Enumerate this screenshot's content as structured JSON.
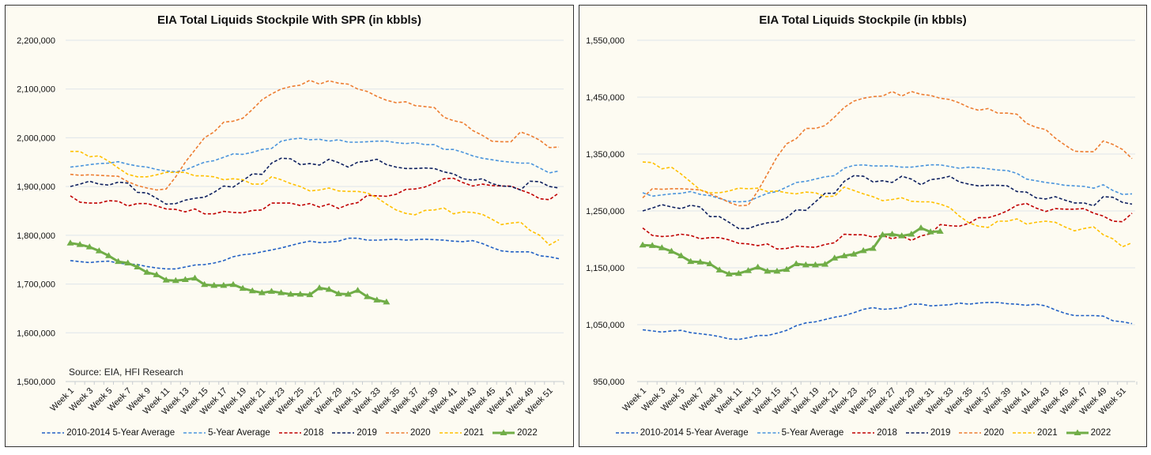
{
  "chart_data": [
    {
      "type": "line",
      "title": "EIA Total Liquids Stockpile With SPR (in kbbls)",
      "xlabel": "",
      "ylabel": "",
      "ylim": [
        1500000,
        2200000
      ],
      "yticks": [
        1500000,
        1600000,
        1700000,
        1800000,
        1900000,
        2000000,
        2100000,
        2200000
      ],
      "ytick_labels": [
        "1,500,000",
        "1,600,000",
        "1,700,000",
        "1,800,000",
        "1,900,000",
        "2,000,000",
        "2,100,000",
        "2,200,000"
      ],
      "grid": true,
      "legend_position": "bottom",
      "annotation": "Source: EIA, HFI Research",
      "value_unit_note": "values listed in thousands of kbbls",
      "series": [
        {
          "name": "2010-2014 5-Year Average",
          "color": "#2160c4",
          "style": "dashed",
          "values": [
            1748,
            1746,
            1744,
            1746,
            1747,
            1743,
            1741,
            1740,
            1736,
            1733,
            1731,
            1731,
            1735,
            1739,
            1740,
            1743,
            1748,
            1756,
            1760,
            1762,
            1766,
            1770,
            1774,
            1779,
            1784,
            1788,
            1785,
            1786,
            1788,
            1794,
            1794,
            1790,
            1790,
            1791,
            1792,
            1790,
            1791,
            1792,
            1791,
            1790,
            1788,
            1787,
            1789,
            1783,
            1775,
            1768,
            1766,
            1766,
            1766,
            1758,
            1756,
            1752
          ]
        },
        {
          "name": "5-Year Average",
          "color": "#4a94dc",
          "style": "dashed",
          "values": [
            1940,
            1942,
            1945,
            1947,
            1948,
            1951,
            1946,
            1942,
            1940,
            1935,
            1932,
            1930,
            1934,
            1942,
            1950,
            1953,
            1960,
            1967,
            1966,
            1970,
            1976,
            1978,
            1993,
            1997,
            1999,
            1996,
            1997,
            1993,
            1996,
            1991,
            1991,
            1992,
            1993,
            1993,
            1990,
            1988,
            1990,
            1986,
            1986,
            1976,
            1976,
            1970,
            1963,
            1958,
            1955,
            1952,
            1950,
            1948,
            1948,
            1938,
            1928,
            1932
          ]
        },
        {
          "name": "2018",
          "color": "#c00000",
          "style": "dashed",
          "values": [
            1881,
            1868,
            1866,
            1866,
            1871,
            1870,
            1860,
            1865,
            1865,
            1860,
            1854,
            1853,
            1848,
            1854,
            1844,
            1844,
            1849,
            1847,
            1846,
            1851,
            1852,
            1866,
            1866,
            1866,
            1861,
            1865,
            1858,
            1864,
            1855,
            1863,
            1867,
            1882,
            1881,
            1880,
            1884,
            1894,
            1895,
            1899,
            1907,
            1916,
            1917,
            1908,
            1901,
            1905,
            1902,
            1901,
            1901,
            1893,
            1886,
            1875,
            1873,
            1887
          ]
        },
        {
          "name": "2019",
          "color": "#0d1f5e",
          "style": "dashed",
          "values": [
            1900,
            1905,
            1911,
            1905,
            1903,
            1909,
            1907,
            1888,
            1887,
            1876,
            1864,
            1865,
            1872,
            1876,
            1878,
            1888,
            1901,
            1899,
            1912,
            1926,
            1925,
            1948,
            1958,
            1957,
            1945,
            1947,
            1944,
            1956,
            1949,
            1940,
            1950,
            1952,
            1956,
            1945,
            1940,
            1937,
            1937,
            1938,
            1937,
            1930,
            1926,
            1916,
            1913,
            1916,
            1906,
            1901,
            1900,
            1893,
            1911,
            1910,
            1900,
            1897
          ]
        },
        {
          "name": "2020",
          "color": "#ed7d31",
          "style": "dashed",
          "values": [
            1925,
            1923,
            1924,
            1923,
            1922,
            1921,
            1910,
            1902,
            1897,
            1893,
            1895,
            1920,
            1950,
            1975,
            2000,
            2012,
            2032,
            2034,
            2040,
            2058,
            2078,
            2090,
            2100,
            2105,
            2108,
            2118,
            2110,
            2117,
            2112,
            2110,
            2100,
            2095,
            2085,
            2077,
            2072,
            2074,
            2066,
            2064,
            2062,
            2042,
            2035,
            2031,
            2015,
            2005,
            1993,
            1992,
            1992,
            2012,
            2005,
            1995,
            1980,
            1981
          ]
        },
        {
          "name": "2021",
          "color": "#ffc000",
          "style": "dashed",
          "values": [
            1972,
            1972,
            1961,
            1963,
            1952,
            1938,
            1925,
            1920,
            1920,
            1924,
            1929,
            1929,
            1929,
            1922,
            1922,
            1920,
            1914,
            1916,
            1914,
            1905,
            1905,
            1920,
            1914,
            1906,
            1900,
            1891,
            1893,
            1897,
            1891,
            1890,
            1890,
            1887,
            1877,
            1864,
            1852,
            1845,
            1842,
            1851,
            1852,
            1856,
            1844,
            1848,
            1847,
            1843,
            1833,
            1822,
            1825,
            1827,
            1810,
            1800,
            1780,
            1791
          ]
        },
        {
          "name": "2022",
          "color": "#70ad47",
          "style": "solid-triangle",
          "values": [
            1784,
            1781,
            1776,
            1768,
            1758,
            1746,
            1743,
            1735,
            1724,
            1719,
            1708,
            1707,
            1709,
            1712,
            1699,
            1697,
            1697,
            1699,
            1691,
            1686,
            1682,
            1685,
            1682,
            1679,
            1679,
            1678,
            1692,
            1689,
            1680,
            1679,
            1687,
            1674,
            1667,
            1663
          ]
        }
      ]
    },
    {
      "type": "line",
      "title": "EIA Total Liquids Stockpile (in kbbls)",
      "xlabel": "",
      "ylabel": "",
      "ylim": [
        950000,
        1550000
      ],
      "yticks": [
        950000,
        1050000,
        1150000,
        1250000,
        1350000,
        1450000,
        1550000
      ],
      "ytick_labels": [
        "950,000",
        "1,050,000",
        "1,150,000",
        "1,250,000",
        "1,350,000",
        "1,450,000",
        "1,550,000"
      ],
      "grid": true,
      "legend_position": "bottom",
      "value_unit_note": "values listed in thousands of kbbls",
      "series": [
        {
          "name": "2010-2014 5-Year Average",
          "color": "#2160c4",
          "style": "dashed",
          "values": [
            1041,
            1039,
            1037,
            1039,
            1040,
            1036,
            1034,
            1032,
            1029,
            1025,
            1024,
            1027,
            1031,
            1031,
            1035,
            1040,
            1048,
            1053,
            1055,
            1059,
            1063,
            1066,
            1071,
            1077,
            1080,
            1077,
            1078,
            1080,
            1086,
            1086,
            1083,
            1084,
            1085,
            1088,
            1086,
            1088,
            1089,
            1089,
            1087,
            1086,
            1084,
            1086,
            1083,
            1076,
            1070,
            1066,
            1066,
            1066,
            1065,
            1057,
            1055,
            1052
          ]
        },
        {
          "name": "5-Year Average",
          "color": "#4a94dc",
          "style": "dashed",
          "values": [
            1282,
            1276,
            1278,
            1280,
            1281,
            1284,
            1279,
            1277,
            1272,
            1267,
            1266,
            1267,
            1274,
            1281,
            1284,
            1292,
            1300,
            1302,
            1306,
            1310,
            1312,
            1325,
            1330,
            1331,
            1329,
            1329,
            1329,
            1327,
            1327,
            1329,
            1331,
            1331,
            1328,
            1325,
            1327,
            1326,
            1324,
            1322,
            1321,
            1316,
            1306,
            1303,
            1300,
            1298,
            1295,
            1294,
            1293,
            1290,
            1296,
            1286,
            1279,
            1280
          ]
        },
        {
          "name": "2018",
          "color": "#c00000",
          "style": "dashed",
          "values": [
            1220,
            1207,
            1205,
            1206,
            1209,
            1207,
            1201,
            1203,
            1203,
            1199,
            1193,
            1192,
            1189,
            1192,
            1183,
            1184,
            1188,
            1187,
            1186,
            1191,
            1194,
            1209,
            1208,
            1208,
            1204,
            1207,
            1201,
            1206,
            1198,
            1206,
            1210,
            1226,
            1224,
            1223,
            1228,
            1238,
            1238,
            1243,
            1250,
            1260,
            1263,
            1255,
            1249,
            1254,
            1253,
            1253,
            1254,
            1246,
            1241,
            1232,
            1231,
            1246
          ]
        },
        {
          "name": "2019",
          "color": "#0d1f5e",
          "style": "dashed",
          "values": [
            1250,
            1255,
            1261,
            1257,
            1254,
            1260,
            1257,
            1240,
            1240,
            1230,
            1219,
            1219,
            1225,
            1229,
            1231,
            1238,
            1252,
            1251,
            1266,
            1281,
            1281,
            1302,
            1312,
            1311,
            1301,
            1303,
            1300,
            1311,
            1306,
            1296,
            1305,
            1307,
            1311,
            1301,
            1297,
            1294,
            1295,
            1295,
            1294,
            1284,
            1283,
            1273,
            1271,
            1275,
            1269,
            1264,
            1264,
            1259,
            1275,
            1274,
            1265,
            1262
          ]
        },
        {
          "name": "2020",
          "color": "#ed7d31",
          "style": "dashed",
          "values": [
            1273,
            1289,
            1288,
            1289,
            1289,
            1288,
            1287,
            1280,
            1273,
            1265,
            1259,
            1260,
            1285,
            1315,
            1345,
            1368,
            1377,
            1395,
            1395,
            1400,
            1415,
            1432,
            1443,
            1448,
            1451,
            1452,
            1460,
            1452,
            1460,
            1455,
            1453,
            1448,
            1446,
            1440,
            1432,
            1427,
            1430,
            1422,
            1422,
            1420,
            1404,
            1397,
            1393,
            1378,
            1366,
            1355,
            1354,
            1354,
            1373,
            1367,
            1358,
            1342
          ]
        },
        {
          "name": "2021",
          "color": "#ffc000",
          "style": "dashed",
          "values": [
            1336,
            1335,
            1324,
            1327,
            1315,
            1301,
            1287,
            1282,
            1282,
            1285,
            1290,
            1289,
            1290,
            1284,
            1285,
            1282,
            1280,
            1283,
            1282,
            1275,
            1276,
            1292,
            1286,
            1280,
            1275,
            1268,
            1270,
            1273,
            1267,
            1266,
            1266,
            1262,
            1256,
            1241,
            1229,
            1223,
            1221,
            1232,
            1232,
            1236,
            1227,
            1230,
            1232,
            1230,
            1222,
            1215,
            1219,
            1222,
            1208,
            1201,
            1187,
            1194
          ]
        },
        {
          "name": "2022",
          "color": "#70ad47",
          "style": "solid-triangle",
          "values": [
            1190,
            1189,
            1185,
            1179,
            1171,
            1161,
            1160,
            1157,
            1146,
            1139,
            1140,
            1145,
            1151,
            1144,
            1144,
            1147,
            1157,
            1155,
            1155,
            1156,
            1167,
            1171,
            1174,
            1180,
            1184,
            1208,
            1209,
            1206,
            1209,
            1220,
            1213,
            1214
          ]
        }
      ]
    }
  ],
  "categories": [
    "Week 1",
    "Week 2",
    "Week 3",
    "Week 4",
    "Week 5",
    "Week 6",
    "Week 7",
    "Week 8",
    "Week 9",
    "Week 10",
    "Week 11",
    "Week 12",
    "Week 13",
    "Week 14",
    "Week 15",
    "Week 16",
    "Week 17",
    "Week 18",
    "Week 19",
    "Week 20",
    "Week 21",
    "Week 22",
    "Week 23",
    "Week 24",
    "Week 25",
    "Week 26",
    "Week 27",
    "Week 28",
    "Week 29",
    "Week 30",
    "Week 31",
    "Week 32",
    "Week 33",
    "Week 34",
    "Week 35",
    "Week 36",
    "Week 37",
    "Week 38",
    "Week 39",
    "Week 40",
    "Week 41",
    "Week 42",
    "Week 43",
    "Week 44",
    "Week 45",
    "Week 46",
    "Week 47",
    "Week 48",
    "Week 49",
    "Week 50",
    "Week 51",
    "Week 52"
  ],
  "colors": {
    "background": "#fdfbf2",
    "grid": "#dfe5ea"
  }
}
